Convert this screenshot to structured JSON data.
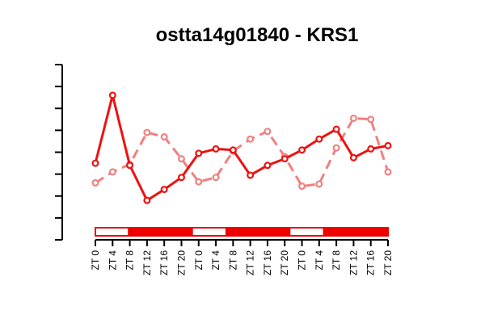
{
  "chart_data": {
    "type": "line",
    "title": "ostta14g01840 - KRS1",
    "xlabel": "",
    "ylabel": "",
    "ylim": [
      0,
      8
    ],
    "y_ticks": [
      0,
      1,
      2,
      3,
      4,
      5,
      6,
      7,
      8
    ],
    "y_tick_labels_shown": false,
    "categories": [
      "ZT 0",
      "ZT 4",
      "ZT 8",
      "ZT 12",
      "ZT 16",
      "ZT 20",
      "ZT 0",
      "ZT 4",
      "ZT 8",
      "ZT 12",
      "ZT 16",
      "ZT 20",
      "ZT 0",
      "ZT 4",
      "ZT 8",
      "ZT 12",
      "ZT 16",
      "ZT 20"
    ],
    "series": [
      {
        "style": "solid",
        "color": "#ee1111",
        "values": [
          3.5,
          6.6,
          3.4,
          1.8,
          2.3,
          2.85,
          3.95,
          4.15,
          4.1,
          2.95,
          3.4,
          3.7,
          4.1,
          4.6,
          5.05,
          3.75,
          4.15,
          4.3
        ]
      },
      {
        "style": "dashed",
        "color": "#f08080",
        "values": [
          2.6,
          3.1,
          3.45,
          4.9,
          4.7,
          3.7,
          2.65,
          2.85,
          4.05,
          4.6,
          4.95,
          3.8,
          2.45,
          2.55,
          4.2,
          5.55,
          5.5,
          3.1
        ]
      }
    ],
    "light_dark_bar": {
      "colors": {
        "light": "#ffffff",
        "dark": "#ee0000",
        "border": "#ee0000"
      },
      "segments": [
        "light",
        "light",
        "dark",
        "dark",
        "dark",
        "dark",
        "light",
        "light",
        "dark",
        "dark",
        "dark",
        "dark",
        "light",
        "light",
        "dark",
        "dark",
        "dark",
        "dark"
      ]
    },
    "grid": false,
    "legend": "none"
  }
}
